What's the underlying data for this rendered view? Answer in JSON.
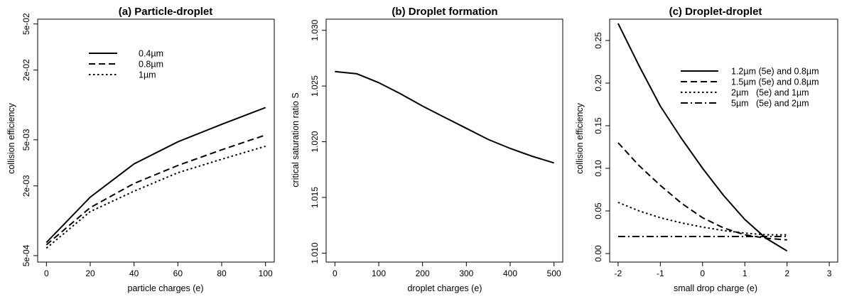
{
  "chart_data": [
    {
      "type": "line",
      "title": "(a) Particle-droplet",
      "xlabel": "particle charges (e)",
      "ylabel": "collision efficiency",
      "xlim": [
        -4,
        104
      ],
      "ylim": [
        0.00044,
        0.055
      ],
      "yscale": "log",
      "x_ticks": [
        0,
        20,
        40,
        60,
        80,
        100
      ],
      "x_tick_labels": [
        "0",
        "20",
        "40",
        "60",
        "80",
        "100"
      ],
      "y_ticks": [
        0.0005,
        0.002,
        0.005,
        0.02,
        0.05
      ],
      "y_tick_labels": [
        "5e-04",
        "2e-03",
        "5e-03",
        "2e-02",
        "5e-02"
      ],
      "legend_position": "top-left",
      "series": [
        {
          "name": "0.4µm",
          "style": "solid",
          "x": [
            0,
            20,
            40,
            60,
            80,
            100
          ],
          "y": [
            0.00065,
            0.0016,
            0.0031,
            0.0048,
            0.0068,
            0.0095
          ]
        },
        {
          "name": "0.8µm",
          "style": "dashed",
          "x": [
            0,
            20,
            40,
            60,
            80,
            100
          ],
          "y": [
            0.00062,
            0.0013,
            0.0021,
            0.003,
            0.0041,
            0.0055
          ]
        },
        {
          "name": "1µm",
          "style": "dotted",
          "x": [
            0,
            20,
            40,
            60,
            80,
            100
          ],
          "y": [
            0.00058,
            0.0012,
            0.0018,
            0.0026,
            0.0034,
            0.0044
          ]
        }
      ]
    },
    {
      "type": "line",
      "title": "(b) Droplet formation",
      "xlabel": "droplet charges (e)",
      "ylabel": "critical saturation ratio S",
      "xlim": [
        -20,
        520
      ],
      "ylim": [
        1.0092,
        1.031
      ],
      "x_ticks": [
        0,
        100,
        200,
        300,
        400,
        500
      ],
      "x_tick_labels": [
        "0",
        "100",
        "200",
        "300",
        "400",
        "500"
      ],
      "y_ticks": [
        1.01,
        1.015,
        1.02,
        1.025,
        1.03
      ],
      "y_tick_labels": [
        "1.010",
        "1.015",
        "1.020",
        "1.025",
        "1.030"
      ],
      "series": [
        {
          "style": "solid",
          "x": [
            0,
            50,
            100,
            150,
            200,
            250,
            300,
            350,
            400,
            450,
            500
          ],
          "y": [
            1.0263,
            1.0261,
            1.0253,
            1.0243,
            1.0232,
            1.0222,
            1.0212,
            1.0202,
            1.0194,
            1.0187,
            1.0181
          ]
        }
      ]
    },
    {
      "type": "line",
      "title": "(c) Droplet-droplet",
      "xlabel": "small drop charge (e)",
      "ylabel": "collision efficiency",
      "xlim": [
        -2.2,
        3.2
      ],
      "ylim": [
        -0.01,
        0.275
      ],
      "x_ticks": [
        -2,
        -1,
        0,
        1,
        2,
        3
      ],
      "x_tick_labels": [
        "-2",
        "-1",
        "0",
        "1",
        "2",
        "3"
      ],
      "y_ticks": [
        0,
        0.05,
        0.1,
        0.15,
        0.2,
        0.25
      ],
      "y_tick_labels": [
        "0.00",
        "0.05",
        "0.10",
        "0.15",
        "0.20",
        "0.25"
      ],
      "legend_position": "top-right",
      "series": [
        {
          "name": "1.2µm (5e) and 0.8µm",
          "style": "solid",
          "x": [
            -2,
            -1.5,
            -1,
            -0.5,
            0,
            0.5,
            1,
            1.5,
            2
          ],
          "y": [
            0.27,
            0.22,
            0.173,
            0.135,
            0.1,
            0.068,
            0.04,
            0.018,
            0.003
          ]
        },
        {
          "name": "1.5µm (5e) and 0.8µm",
          "style": "dashed",
          "x": [
            -2,
            -1.5,
            -1,
            -0.5,
            0,
            0.5,
            1,
            1.5,
            2
          ],
          "y": [
            0.13,
            0.103,
            0.08,
            0.059,
            0.042,
            0.03,
            0.022,
            0.018,
            0.016
          ]
        },
        {
          "name": "2µm   (5e) and 1µm",
          "style": "dotted",
          "x": [
            -2,
            -1.5,
            -1,
            -0.5,
            0,
            0.5,
            1,
            1.5,
            2
          ],
          "y": [
            0.06,
            0.05,
            0.042,
            0.036,
            0.031,
            0.027,
            0.024,
            0.022,
            0.022
          ]
        },
        {
          "name": "5µm   (5e) and 2µm",
          "style": "dashdot",
          "x": [
            -2,
            -1.5,
            -1,
            -0.5,
            0,
            0.5,
            1,
            1.5,
            2
          ],
          "y": [
            0.02,
            0.02,
            0.02,
            0.02,
            0.02,
            0.02,
            0.02,
            0.02,
            0.02
          ]
        }
      ]
    }
  ]
}
